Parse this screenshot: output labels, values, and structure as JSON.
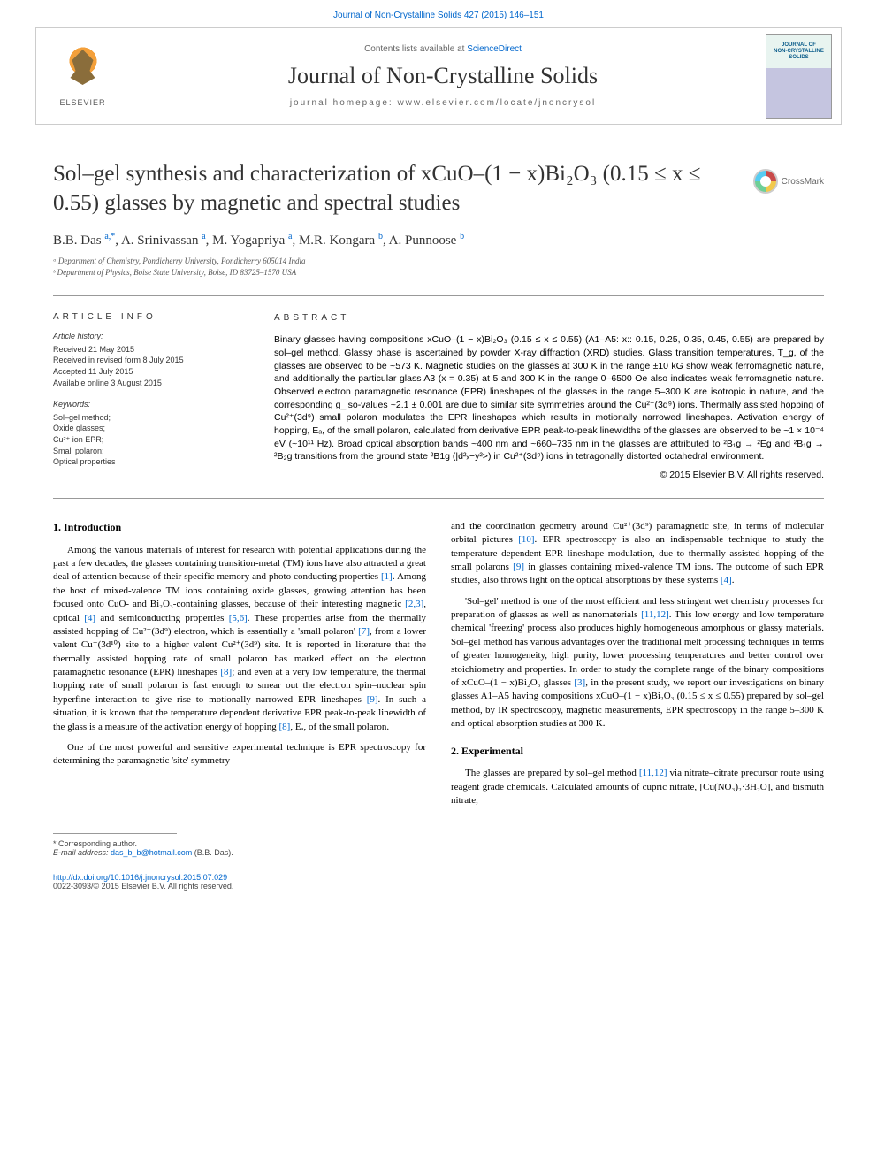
{
  "top_link": "Journal of Non-Crystalline Solids 427 (2015) 146–151",
  "header": {
    "sciencedirect_prefix": "Contents lists available at ",
    "sciencedirect": "ScienceDirect",
    "journal_name": "Journal of Non-Crystalline Solids",
    "homepage_label": "journal homepage: www.elsevier.com/locate/jnoncrysol",
    "elsevier_label": "ELSEVIER",
    "cover_line1": "JOURNAL OF",
    "cover_line2": "NON-CRYSTALLINE SOLIDS"
  },
  "crossmark": "CrossMark",
  "title": "Sol–gel synthesis and characterization of xCuO–(1 − x)Bi₂O₃ (0.15 ≤ x ≤ 0.55) glasses by magnetic and spectral studies",
  "authors_html": "B.B. Das <sup>a,*</sup>, A. Srinivassan <sup>a</sup>, M. Yogapriya <sup>a</sup>, M.R. Kongara <sup>b</sup>, A. Punnoose <sup>b</sup>",
  "affiliations": [
    "ᵃ Department of Chemistry, Pondicherry University, Pondicherry 605014 India",
    "ᵇ Department of Physics, Boise State University, Boise, ID 83725–1570 USA"
  ],
  "article_info": {
    "heading": "ARTICLE INFO",
    "history_label": "Article history:",
    "history": [
      "Received 21 May 2015",
      "Received in revised form 8 July 2015",
      "Accepted 11 July 2015",
      "Available online 3 August 2015"
    ],
    "keywords_label": "Keywords:",
    "keywords": [
      "Sol–gel method;",
      "Oxide glasses;",
      "Cu²⁺ ion EPR;",
      "Small polaron;",
      "Optical properties"
    ]
  },
  "abstract": {
    "heading": "ABSTRACT",
    "text": "Binary glasses having compositions xCuO–(1 − x)Bi₂O₃ (0.15 ≤ x ≤ 0.55) (A1–A5: x:: 0.15, 0.25, 0.35, 0.45, 0.55) are prepared by sol–gel method. Glassy phase is ascertained by powder X-ray diffraction (XRD) studies. Glass transition temperatures, T_g, of the glasses are observed to be ~573 K. Magnetic studies on the glasses at 300 K in the range ±10 kG show weak ferromagnetic nature, and additionally the particular glass A3 (x = 0.35) at 5 and 300 K in the range 0–6500 Oe also indicates weak ferromagnetic nature. Observed electron paramagnetic resonance (EPR) lineshapes of the glasses in the range 5–300 K are isotropic in nature, and the corresponding g_iso-values ~2.1 ± 0.001 are due to similar site symmetries around the Cu²⁺(3d⁹) ions. Thermally assisted hopping of Cu²⁺(3d⁹) small polaron modulates the EPR lineshapes which results in motionally narrowed lineshapes. Activation energy of hopping, Eₐ, of the small polaron, calculated from derivative EPR peak-to-peak linewidths of the glasses are observed to be ~1 × 10⁻⁴ eV (~10¹¹ Hz). Broad optical absorption bands ~400 nm and ~660–735 nm in the glasses are attributed to ²B₁g → ²Eg and ²B₁g → ²B₂g transitions from the ground state ²B1g (|d²ₓ−y²>) in Cu²⁺(3d⁹) ions in tetragonally distorted octahedral environment.",
    "copyright": "© 2015 Elsevier B.V. All rights reserved."
  },
  "sections": {
    "intro_heading": "1. Introduction",
    "intro_p1": "Among the various materials of interest for research with potential applications during the past a few decades, the glasses containing transition-metal (TM) ions have also attracted a great deal of attention because of their specific memory and photo conducting properties [1]. Among the host of mixed-valence TM ions containing oxide glasses, growing attention has been focused onto CuO- and Bi₂O₃-containing glasses, because of their interesting magnetic [2,3], optical [4] and semiconducting properties [5,6]. These properties arise from the thermally assisted hopping of Cu²⁺(3d⁹) electron, which is essentially a 'small polaron' [7], from a lower valent Cu⁺(3d¹⁰) site to a higher valent Cu²⁺(3d⁹) site. It is reported in literature that the thermally assisted hopping rate of small polaron has marked effect on the electron paramagnetic resonance (EPR) lineshapes [8]; and even at a very low temperature, the thermal hopping rate of small polaron is fast enough to smear out the electron spin–nuclear spin hyperfine interaction to give rise to motionally narrowed EPR lineshapes [9]. In such a situation, it is known that the temperature dependent derivative EPR peak-to-peak linewidth of the glass is a measure of the activation energy of hopping [8], Eₐ, of the small polaron.",
    "intro_p2": "One of the most powerful and sensitive experimental technique is EPR spectroscopy for determining the paramagnetic 'site' symmetry",
    "intro_p3": "and the coordination geometry around Cu²⁺(3d⁹) paramagnetic site, in terms of molecular orbital pictures [10]. EPR spectroscopy is also an indispensable technique to study the temperature dependent EPR lineshape modulation, due to thermally assisted hopping of the small polarons [9] in glasses containing mixed-valence TM ions. The outcome of such EPR studies, also throws light on the optical absorptions by these systems [4].",
    "intro_p4": "'Sol–gel' method is one of the most efficient and less stringent wet chemistry processes for preparation of glasses as well as nanomaterials [11,12]. This low energy and low temperature chemical 'freezing' process also produces highly homogeneous amorphous or glassy materials. Sol–gel method has various advantages over the traditional melt processing techniques in terms of greater homogeneity, high purity, lower processing temperatures and better control over stoichiometry and properties. In order to study the complete range of the binary compositions of xCuO–(1 − x)Bi₂O₃ glasses [3], in the present study, we report our investigations on binary glasses A1–A5 having compositions xCuO–(1 − x)Bi₂O₃ (0.15 ≤ x ≤ 0.55) prepared by sol–gel method, by IR spectroscopy, magnetic measurements, EPR spectroscopy in the range 5–300 K and optical absorption studies at 300 K.",
    "exp_heading": "2. Experimental",
    "exp_p1": "The glasses are prepared by sol–gel method [11,12] via nitrate–citrate precursor route using reagent grade chemicals. Calculated amounts of cupric nitrate, [Cu(NO₃)₂·3H₂O], and bismuth nitrate,"
  },
  "footer": {
    "corresponding": "* Corresponding author.",
    "email_label": "E-mail address: ",
    "email": "das_b_b@hotmail.com",
    "email_suffix": " (B.B. Das).",
    "doi": "http://dx.doi.org/10.1016/j.jnoncrysol.2015.07.029",
    "issn": "0022-3093/© 2015 Elsevier B.V. All rights reserved."
  },
  "colors": {
    "link": "#0066cc",
    "text": "#333333",
    "border": "#cccccc"
  }
}
